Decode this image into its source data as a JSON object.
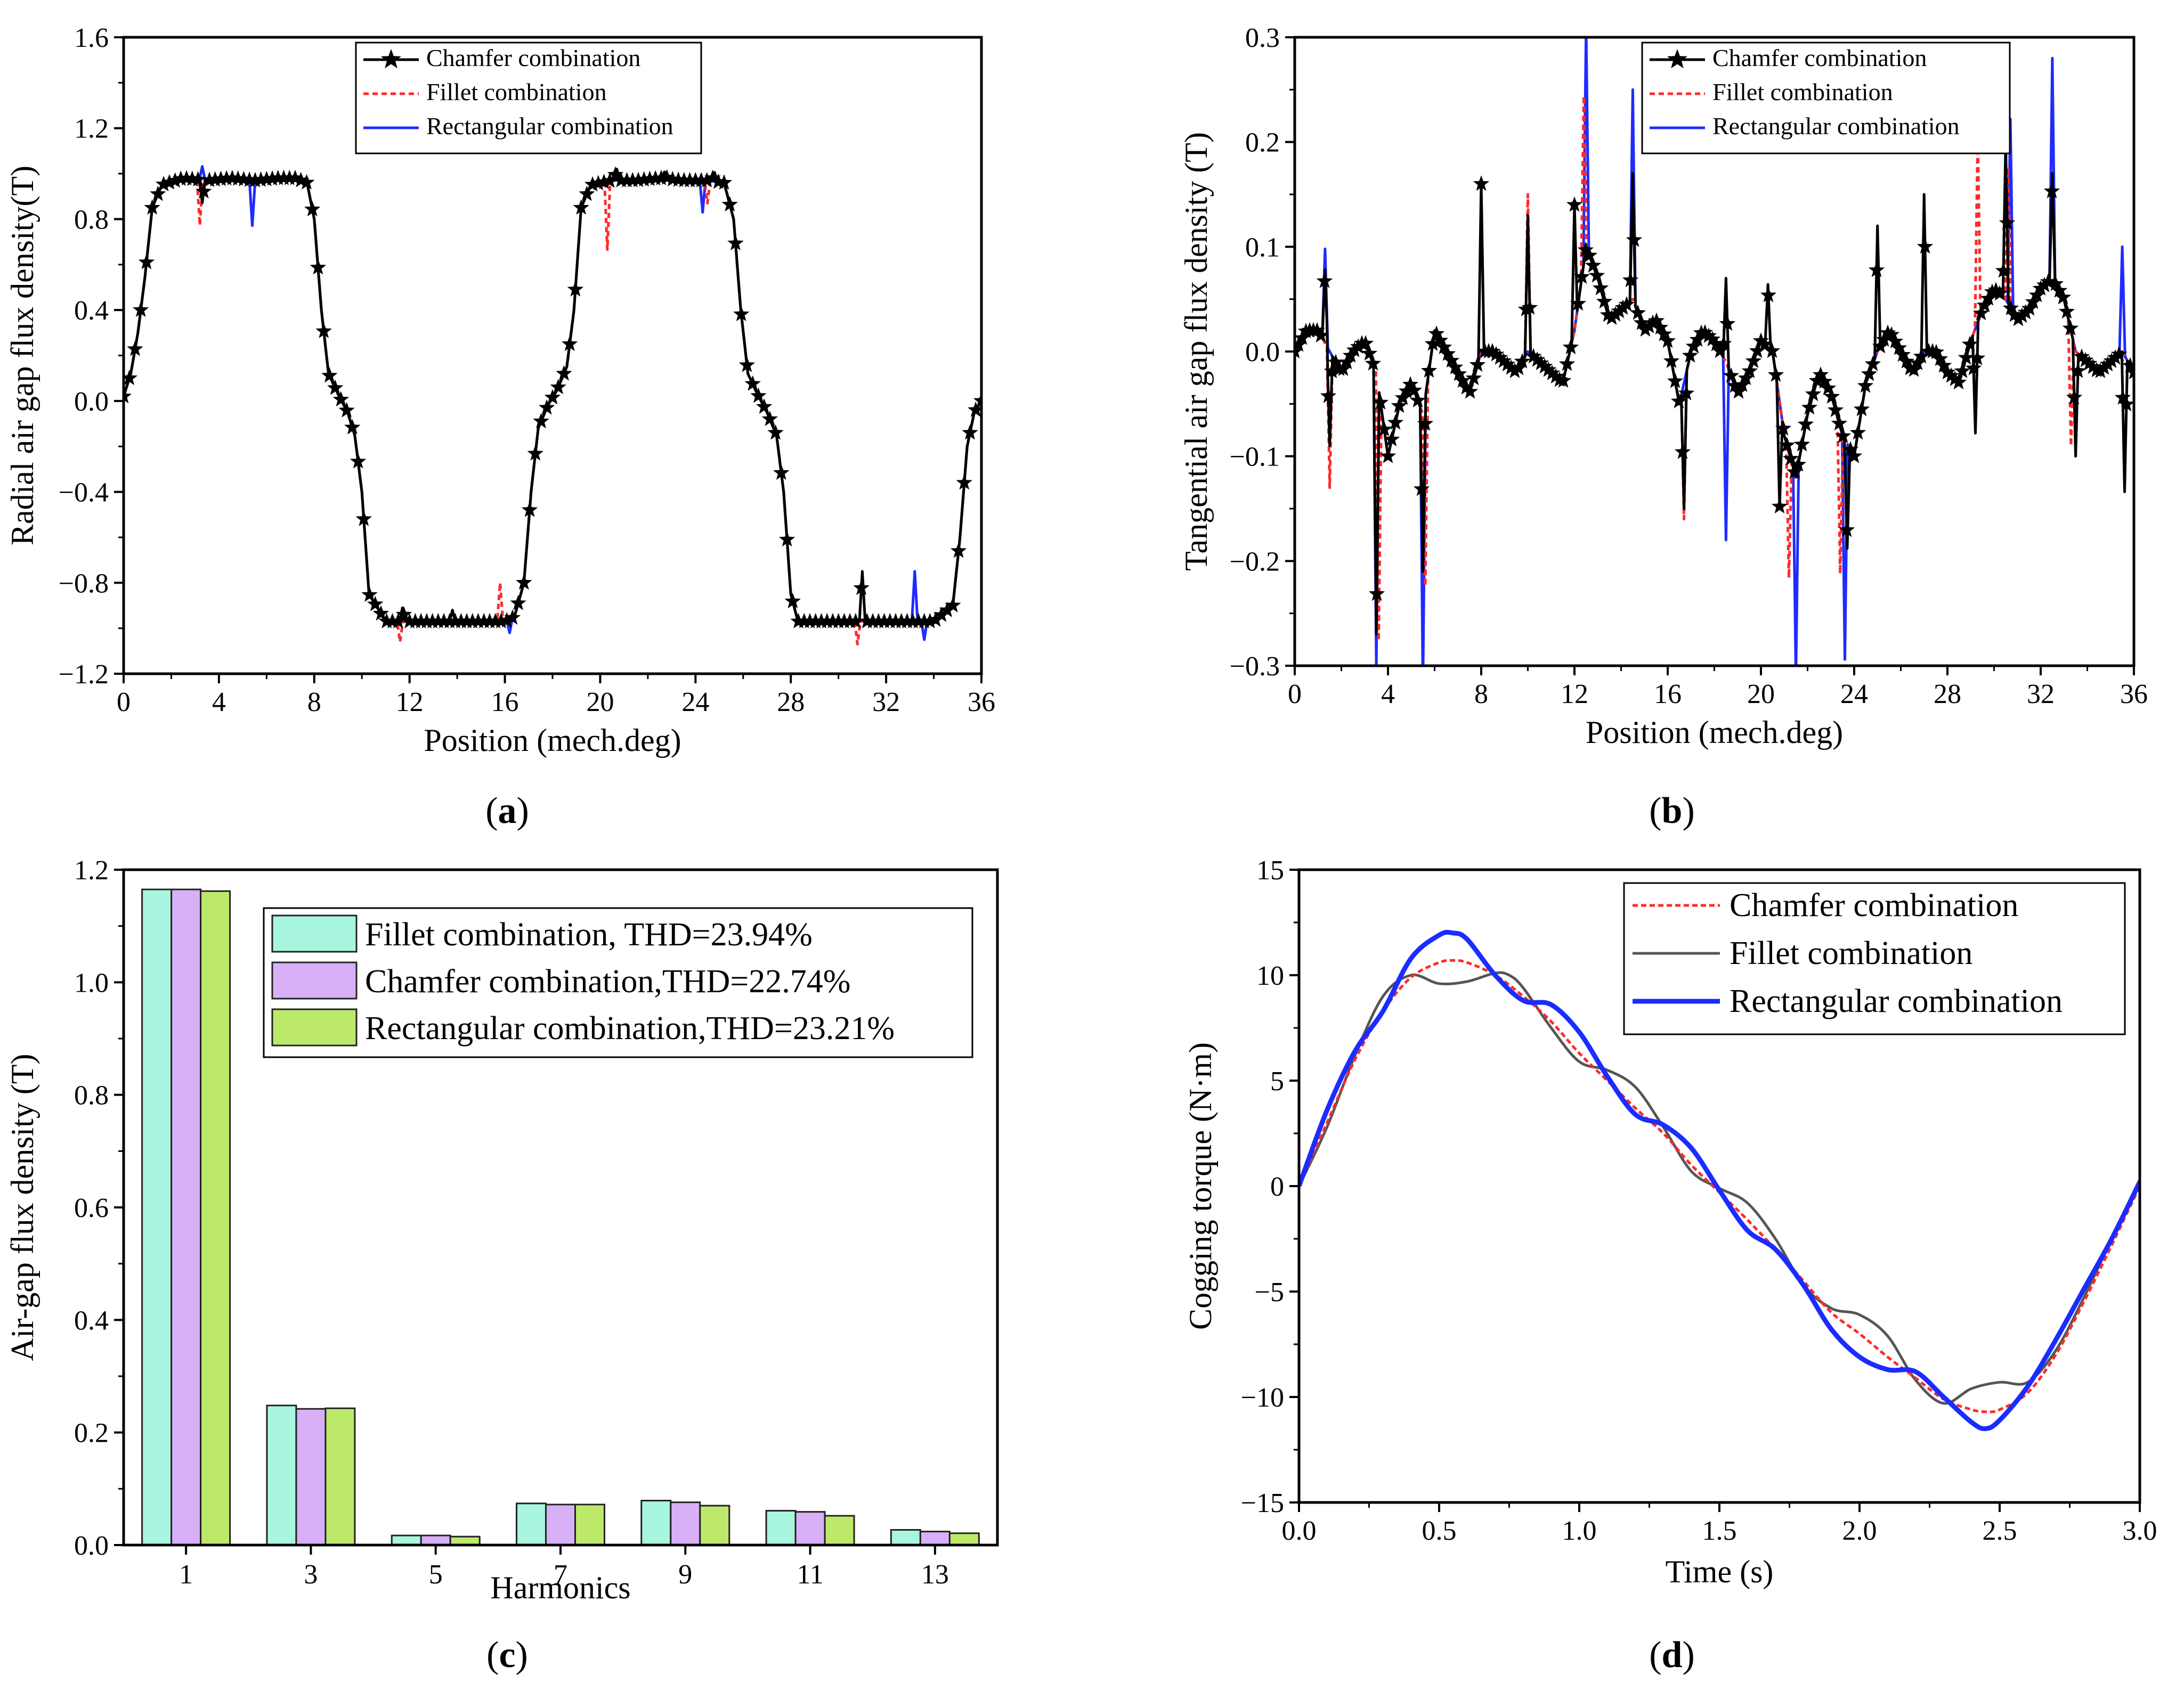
{
  "chart_data": [
    {
      "id": "a",
      "type": "line",
      "panel_label": "(a)",
      "xlabel": "Position (mech.deg)",
      "ylabel": "Radial air gap flux density(T)",
      "xlim": [
        0,
        36
      ],
      "ylim": [
        -1.2,
        1.6
      ],
      "xticks": [
        0,
        4,
        8,
        12,
        16,
        20,
        24,
        28,
        32,
        36
      ],
      "yticks": [
        -1.2,
        -0.8,
        -0.4,
        0.0,
        0.4,
        0.8,
        1.2,
        1.6
      ],
      "ytick_labels": [
        "−1.2",
        "−0.8",
        "−0.4",
        "0.0",
        "0.4",
        "0.8",
        "1.2",
        "1.6"
      ],
      "legend_position": "top-center",
      "base_profile": {
        "x": [
          0,
          0.3,
          0.6,
          0.9,
          1.2,
          1.6,
          2.5,
          3.5,
          4.5,
          5.5,
          6.5,
          7.2,
          7.7,
          8.0,
          8.3,
          8.6,
          9.0,
          9.4,
          9.7,
          10.0,
          10.3,
          11.0,
          12.0,
          13.0,
          14.0,
          15.0,
          16.0,
          16.4,
          16.8,
          17.1,
          17.4,
          17.8,
          18.2,
          18.6,
          18.9,
          19.2,
          19.6,
          20.5,
          21.5,
          22.5,
          23.5,
          24.5,
          25.2,
          25.6,
          25.9,
          26.2,
          26.6,
          27.0,
          27.4,
          27.7,
          28.0,
          28.3,
          29.0,
          30.0,
          31.0,
          32.0,
          33.0,
          34.0,
          34.8,
          35.1,
          35.4,
          35.7,
          36.0
        ],
        "y": [
          0.02,
          0.12,
          0.3,
          0.55,
          0.85,
          0.95,
          0.98,
          0.97,
          0.98,
          0.97,
          0.98,
          0.98,
          0.96,
          0.8,
          0.4,
          0.12,
          0.03,
          -0.05,
          -0.15,
          -0.4,
          -0.85,
          -0.97,
          -0.97,
          -0.97,
          -0.97,
          -0.97,
          -0.97,
          -0.95,
          -0.8,
          -0.4,
          -0.12,
          -0.02,
          0.05,
          0.15,
          0.4,
          0.85,
          0.95,
          0.97,
          0.97,
          0.98,
          0.97,
          0.97,
          0.96,
          0.8,
          0.4,
          0.12,
          0.03,
          -0.05,
          -0.15,
          -0.4,
          -0.85,
          -0.97,
          -0.97,
          -0.97,
          -0.97,
          -0.97,
          -0.97,
          -0.97,
          -0.9,
          -0.6,
          -0.2,
          -0.05,
          0.0
        ]
      },
      "series": [
        {
          "name": "Chamfer combination",
          "color": "#000000",
          "dash": "solid",
          "marker": "star",
          "marker_step_deg": 0.24,
          "spikes": [
            {
              "x": 3.3,
              "dy": -0.1
            },
            {
              "x": 11.7,
              "dy": 0.06
            },
            {
              "x": 13.8,
              "dy": 0.05
            },
            {
              "x": 20.7,
              "dy": 0.05
            },
            {
              "x": 22.7,
              "dy": 0.03
            },
            {
              "x": 24.8,
              "dy": 0.04
            },
            {
              "x": 31.0,
              "dy": 0.22
            }
          ]
        },
        {
          "name": "Fillet combination",
          "color": "#ff2a2a",
          "dash": "dotted",
          "marker": "none",
          "spikes": [
            {
              "x": 3.2,
              "dy": -0.2
            },
            {
              "x": 11.6,
              "dy": -0.09
            },
            {
              "x": 15.8,
              "dy": 0.17
            },
            {
              "x": 20.3,
              "dy": -0.3
            },
            {
              "x": 24.5,
              "dy": -0.1
            },
            {
              "x": 30.8,
              "dy": -0.1
            }
          ]
        },
        {
          "name": "Rectangular combination",
          "color": "#1f2bff",
          "dash": "solid",
          "marker": "none",
          "spikes": [
            {
              "x": 3.3,
              "dy": 0.06
            },
            {
              "x": 5.4,
              "dy": -0.2
            },
            {
              "x": 16.2,
              "dy": -0.06
            },
            {
              "x": 24.3,
              "dy": -0.14
            },
            {
              "x": 33.2,
              "dy": 0.22
            },
            {
              "x": 33.6,
              "dy": -0.08
            }
          ]
        }
      ]
    },
    {
      "id": "b",
      "type": "line",
      "panel_label": "(b)",
      "xlabel": "Position (mech.deg)",
      "ylabel": "Tangential air gap flux density (T)",
      "xlim": [
        0,
        36
      ],
      "ylim": [
        -0.3,
        0.3
      ],
      "xticks": [
        0,
        4,
        8,
        12,
        16,
        20,
        24,
        28,
        32,
        36
      ],
      "yticks": [
        -0.3,
        -0.2,
        -0.1,
        0.0,
        0.1,
        0.2,
        0.3
      ],
      "ytick_labels": [
        "−0.3",
        "−0.2",
        "−0.1",
        "0.0",
        "0.1",
        "0.2",
        "0.3"
      ],
      "legend_position": "top-right",
      "base_profile": {
        "x": [
          0,
          0.5,
          1.0,
          1.5,
          2.0,
          2.5,
          3.0,
          3.5,
          4.0,
          4.5,
          5.0,
          5.5,
          6.0,
          6.5,
          7.0,
          7.5,
          8.0,
          8.5,
          9.0,
          9.5,
          10.0,
          10.5,
          11.0,
          11.5,
          12.0,
          12.5,
          13.0,
          13.5,
          14.0,
          14.5,
          15.0,
          15.5,
          16.0,
          16.5,
          17.0,
          17.5,
          18.0,
          18.5,
          19.0,
          19.5,
          20.0,
          20.5,
          21.0,
          21.5,
          22.0,
          22.5,
          23.0,
          23.5,
          24.0,
          24.5,
          25.0,
          25.5,
          26.0,
          26.5,
          27.0,
          27.5,
          28.0,
          28.5,
          29.0,
          29.5,
          30.0,
          30.5,
          31.0,
          31.5,
          32.0,
          32.5,
          33.0,
          33.5,
          34.0,
          34.5,
          35.0,
          35.5,
          36.0
        ],
        "y": [
          0.0,
          0.02,
          0.02,
          0.0,
          -0.02,
          0.0,
          0.01,
          -0.02,
          -0.1,
          -0.05,
          -0.03,
          -0.06,
          0.02,
          0.0,
          -0.02,
          -0.04,
          0.0,
          0.0,
          -0.01,
          -0.02,
          0.0,
          -0.01,
          -0.02,
          -0.03,
          0.02,
          0.1,
          0.07,
          0.03,
          0.04,
          0.05,
          0.02,
          0.03,
          0.01,
          -0.05,
          0.0,
          0.02,
          0.01,
          -0.01,
          -0.04,
          -0.02,
          0.01,
          0.0,
          -0.08,
          -0.12,
          -0.06,
          -0.02,
          -0.04,
          -0.08,
          -0.1,
          -0.03,
          0.0,
          0.02,
          0.0,
          -0.02,
          0.0,
          0.0,
          -0.02,
          -0.03,
          0.01,
          0.04,
          0.06,
          0.05,
          0.03,
          0.04,
          0.06,
          0.07,
          0.05,
          0.0,
          -0.01,
          -0.02,
          -0.01,
          0.0,
          -0.02
        ]
      },
      "series": [
        {
          "name": "Chamfer combination",
          "color": "#000000",
          "dash": "solid",
          "marker": "star",
          "marker_step_deg": 0.16,
          "spikes": [
            {
              "x": 1.3,
              "dy": 0.07
            },
            {
              "x": 1.5,
              "dy": -0.09
            },
            {
              "x": 3.5,
              "dy": -0.25
            },
            {
              "x": 5.5,
              "dy": -0.15
            },
            {
              "x": 8.0,
              "dy": 0.16
            },
            {
              "x": 10.0,
              "dy": 0.13
            },
            {
              "x": 12.0,
              "dy": 0.12
            },
            {
              "x": 14.5,
              "dy": 0.12
            },
            {
              "x": 16.7,
              "dy": -0.12
            },
            {
              "x": 18.5,
              "dy": 0.08
            },
            {
              "x": 20.3,
              "dy": 0.06
            },
            {
              "x": 20.8,
              "dy": -0.1
            },
            {
              "x": 23.7,
              "dy": -0.1
            },
            {
              "x": 25.0,
              "dy": 0.12
            },
            {
              "x": 27.0,
              "dy": 0.15
            },
            {
              "x": 29.2,
              "dy": -0.1
            },
            {
              "x": 30.5,
              "dy": 0.15
            },
            {
              "x": 32.5,
              "dy": 0.1
            },
            {
              "x": 33.5,
              "dy": -0.1
            },
            {
              "x": 35.6,
              "dy": -0.13
            }
          ]
        },
        {
          "name": "Fillet combination",
          "color": "#ff2a2a",
          "dash": "dotted",
          "marker": "none",
          "spikes": [
            {
              "x": 1.5,
              "dy": -0.13
            },
            {
              "x": 3.6,
              "dy": -0.24
            },
            {
              "x": 5.6,
              "dy": -0.18
            },
            {
              "x": 10.0,
              "dy": 0.15
            },
            {
              "x": 12.4,
              "dy": 0.16
            },
            {
              "x": 16.7,
              "dy": -0.13
            },
            {
              "x": 21.2,
              "dy": -0.12
            },
            {
              "x": 23.4,
              "dy": -0.14
            },
            {
              "x": 29.3,
              "dy": 0.18
            },
            {
              "x": 30.6,
              "dy": 0.13
            },
            {
              "x": 33.3,
              "dy": -0.11
            }
          ]
        },
        {
          "name": "Rectangular combination",
          "color": "#1f2bff",
          "dash": "solid",
          "marker": "none",
          "spikes": [
            {
              "x": 1.3,
              "dy": 0.09
            },
            {
              "x": 3.5,
              "dy": -0.28
            },
            {
              "x": 5.5,
              "dy": -0.26
            },
            {
              "x": 12.5,
              "dy": 0.21
            },
            {
              "x": 14.5,
              "dy": 0.2
            },
            {
              "x": 18.5,
              "dy": -0.17
            },
            {
              "x": 21.5,
              "dy": -0.19
            },
            {
              "x": 23.6,
              "dy": -0.21
            },
            {
              "x": 30.7,
              "dy": 0.18
            },
            {
              "x": 32.5,
              "dy": 0.21
            },
            {
              "x": 35.5,
              "dy": 0.1
            }
          ]
        }
      ]
    },
    {
      "id": "c",
      "type": "bar",
      "panel_label": "(c)",
      "xlabel": "Harmonics",
      "ylabel": "Air-gap flux density (T)",
      "ylim": [
        0.0,
        1.2
      ],
      "yticks": [
        0.0,
        0.2,
        0.4,
        0.6,
        0.8,
        1.0,
        1.2
      ],
      "ytick_labels": [
        "0.0",
        "0.2",
        "0.4",
        "0.6",
        "0.8",
        "1.0",
        "1.2"
      ],
      "categories": [
        "1",
        "3",
        "5",
        "7",
        "9",
        "11",
        "13"
      ],
      "legend_position": "top-right",
      "series": [
        {
          "name": "Fillet combination, THD=23.94%",
          "color": "#a8f5e0",
          "values": [
            1.165,
            0.248,
            0.017,
            0.074,
            0.079,
            0.061,
            0.027
          ]
        },
        {
          "name": "Chamfer combination,THD=22.74%",
          "color": "#d8b0f7",
          "values": [
            1.165,
            0.242,
            0.017,
            0.072,
            0.076,
            0.059,
            0.024
          ]
        },
        {
          "name": "Rectangular combination,THD=23.21%",
          "color": "#bde96b",
          "values": [
            1.162,
            0.243,
            0.015,
            0.072,
            0.07,
            0.052,
            0.021
          ]
        }
      ]
    },
    {
      "id": "d",
      "type": "line",
      "panel_label": "(d)",
      "xlabel": "Time (s)",
      "ylabel": "Cogging torque (N·m)",
      "xlim": [
        0.0,
        3.0
      ],
      "ylim": [
        -15,
        15
      ],
      "xticks": [
        0.0,
        0.5,
        1.0,
        1.5,
        2.0,
        2.5,
        3.0
      ],
      "xtick_labels": [
        "0.0",
        "0.5",
        "1.0",
        "1.5",
        "2.0",
        "2.5",
        "3.0"
      ],
      "yticks": [
        -15,
        -10,
        -5,
        0,
        5,
        10,
        15
      ],
      "ytick_labels": [
        "−15",
        "−10",
        "−5",
        "0",
        "5",
        "10",
        "15"
      ],
      "legend_position": "top-right",
      "series": [
        {
          "name": "Chamfer combination",
          "color": "#ff2a2a",
          "dash": "dotted",
          "width": 5,
          "x": [
            0.0,
            0.1,
            0.2,
            0.3,
            0.4,
            0.5,
            0.55,
            0.6,
            0.7,
            0.8,
            0.9,
            1.0,
            1.1,
            1.2,
            1.3,
            1.4,
            1.5,
            1.6,
            1.7,
            1.8,
            1.9,
            2.0,
            2.1,
            2.2,
            2.3,
            2.4,
            2.45,
            2.5,
            2.6,
            2.7,
            2.8,
            2.9,
            3.0
          ],
          "y": [
            0.0,
            3.0,
            6.0,
            8.3,
            9.9,
            10.6,
            10.7,
            10.6,
            10.0,
            9.0,
            7.8,
            6.3,
            5.0,
            3.7,
            2.5,
            1.0,
            -0.3,
            -1.6,
            -3.0,
            -4.5,
            -6.0,
            -7.0,
            -8.1,
            -9.1,
            -10.1,
            -10.6,
            -10.7,
            -10.6,
            -9.8,
            -8.0,
            -5.5,
            -2.8,
            0.0
          ]
        },
        {
          "name": "Fillet combination",
          "color": "#555555",
          "dash": "solid",
          "width": 5,
          "x": [
            0.0,
            0.1,
            0.2,
            0.3,
            0.4,
            0.5,
            0.6,
            0.7,
            0.75,
            0.8,
            0.9,
            1.0,
            1.1,
            1.2,
            1.3,
            1.4,
            1.5,
            1.6,
            1.7,
            1.8,
            1.9,
            2.0,
            2.1,
            2.2,
            2.3,
            2.4,
            2.5,
            2.6,
            2.7,
            2.8,
            2.9,
            3.0
          ],
          "y": [
            0.0,
            2.8,
            6.2,
            9.0,
            10.0,
            9.6,
            9.7,
            10.1,
            10.0,
            9.4,
            7.5,
            5.9,
            5.5,
            4.7,
            2.8,
            0.7,
            -0.1,
            -0.8,
            -2.5,
            -4.7,
            -5.8,
            -6.1,
            -7.1,
            -9.2,
            -10.3,
            -9.6,
            -9.3,
            -9.3,
            -7.8,
            -5.3,
            -2.5,
            0.3
          ]
        },
        {
          "name": "Rectangular combination",
          "color": "#1a2cff",
          "dash": "solid",
          "width": 9,
          "x": [
            0.0,
            0.1,
            0.2,
            0.3,
            0.4,
            0.5,
            0.55,
            0.6,
            0.7,
            0.8,
            0.9,
            1.0,
            1.1,
            1.2,
            1.3,
            1.4,
            1.5,
            1.6,
            1.7,
            1.8,
            1.9,
            2.0,
            2.1,
            2.2,
            2.3,
            2.4,
            2.45,
            2.5,
            2.6,
            2.7,
            2.8,
            2.9,
            3.0
          ],
          "y": [
            0.0,
            3.6,
            6.4,
            8.3,
            10.8,
            11.9,
            12.0,
            11.7,
            10.0,
            8.8,
            8.6,
            7.3,
            5.2,
            3.4,
            2.9,
            1.8,
            -0.2,
            -2.1,
            -3.0,
            -4.7,
            -6.8,
            -8.1,
            -8.7,
            -8.8,
            -10.0,
            -11.2,
            -11.5,
            -11.1,
            -9.5,
            -7.3,
            -4.9,
            -2.5,
            0.2
          ]
        }
      ]
    }
  ]
}
